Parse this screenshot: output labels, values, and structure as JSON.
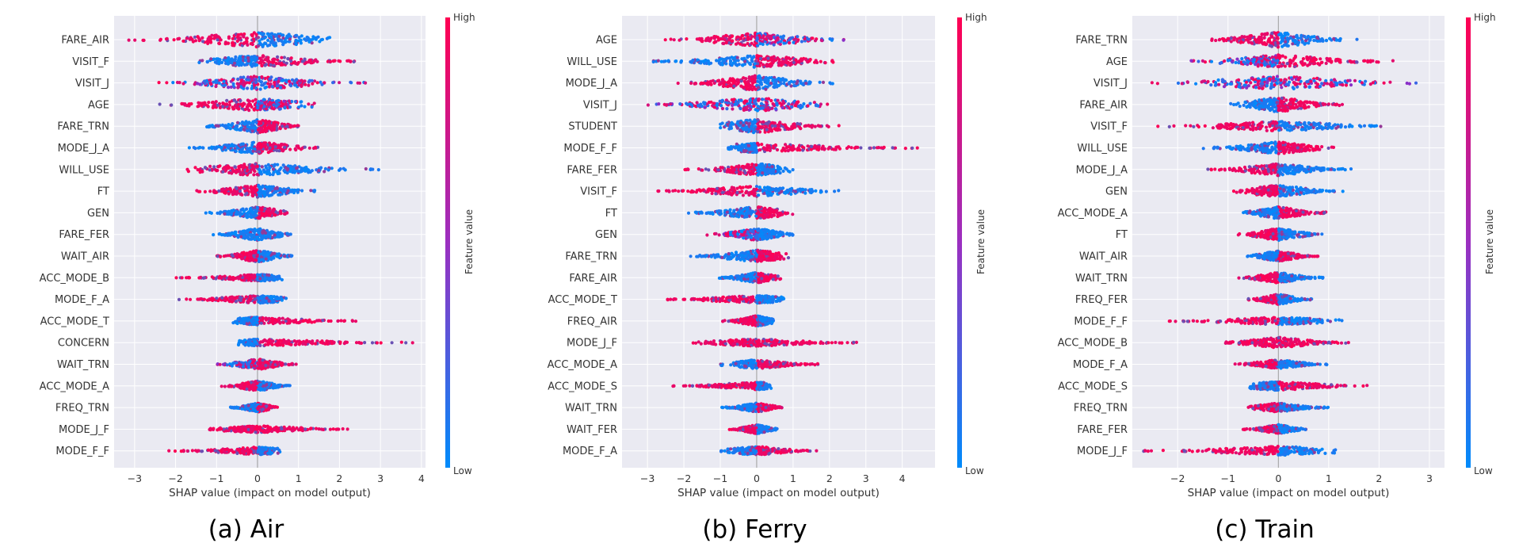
{
  "chart_data": [
    {
      "type": "scatter",
      "subtype": "shap-beeswarm",
      "caption": "(a) Air",
      "xlabel": "SHAP value (impact on model output)",
      "xlim": [
        -3.5,
        4.1
      ],
      "xticks": [
        -3,
        -2,
        -1,
        0,
        1,
        2,
        3,
        4
      ],
      "grid": true,
      "colorbar": {
        "label": "Feature value",
        "high": "High",
        "low": "Low",
        "high_color": "#ff0052",
        "low_color": "#008bfb"
      },
      "features": [
        {
          "name": "FARE_AIR",
          "min": -3.2,
          "max": 1.9,
          "left": "high",
          "right": "low",
          "width": 1.0
        },
        {
          "name": "VISIT_F",
          "min": -1.5,
          "max": 2.4,
          "left": "low",
          "right": "high",
          "width": 0.8
        },
        {
          "name": "VISIT_J",
          "min": -2.5,
          "max": 2.7,
          "left": "mixed",
          "right": "mixed",
          "width": 0.9
        },
        {
          "name": "AGE",
          "min": -2.7,
          "max": 1.4,
          "left": "high",
          "right": "mixed",
          "width": 0.85
        },
        {
          "name": "FARE_TRN",
          "min": -1.3,
          "max": 1.0,
          "left": "low",
          "right": "high",
          "width": 0.9
        },
        {
          "name": "MODE_J_A",
          "min": -1.8,
          "max": 1.5,
          "left": "low",
          "right": "high",
          "width": 0.8
        },
        {
          "name": "WILL_USE",
          "min": -1.9,
          "max": 3.1,
          "left": "high",
          "right": "low",
          "width": 0.8
        },
        {
          "name": "FT",
          "min": -1.7,
          "max": 1.5,
          "left": "high",
          "right": "low",
          "width": 0.8
        },
        {
          "name": "GEN",
          "min": -1.3,
          "max": 0.8,
          "left": "low",
          "right": "high",
          "width": 0.8
        },
        {
          "name": "FARE_FER",
          "min": -1.1,
          "max": 0.9,
          "left": "low",
          "right": "low",
          "width": 0.8
        },
        {
          "name": "WAIT_AIR",
          "min": -1.0,
          "max": 0.9,
          "left": "high",
          "right": "low",
          "width": 0.8
        },
        {
          "name": "ACC_MODE_B",
          "min": -2.0,
          "max": 0.6,
          "left": "high",
          "right": "low",
          "width": 0.45
        },
        {
          "name": "MODE_F_A",
          "min": -2.0,
          "max": 0.7,
          "left": "high",
          "right": "low",
          "width": 0.5
        },
        {
          "name": "ACC_MODE_T",
          "min": -0.6,
          "max": 2.5,
          "left": "low",
          "right": "high",
          "width": 0.5
        },
        {
          "name": "CONCERN",
          "min": -0.5,
          "max": 3.8,
          "left": "low",
          "right": "high",
          "width": 0.45
        },
        {
          "name": "WAIT_TRN",
          "min": -1.1,
          "max": 1.0,
          "left": "mixed",
          "right": "high",
          "width": 0.7
        },
        {
          "name": "ACC_MODE_A",
          "min": -0.9,
          "max": 0.8,
          "left": "high",
          "right": "low",
          "width": 0.7
        },
        {
          "name": "FREQ_TRN",
          "min": -0.7,
          "max": 0.5,
          "left": "low",
          "right": "high",
          "width": 0.6
        },
        {
          "name": "MODE_J_F",
          "min": -1.2,
          "max": 2.4,
          "left": "high",
          "right": "high",
          "width": 0.45
        },
        {
          "name": "MODE_F_F",
          "min": -2.2,
          "max": 0.6,
          "left": "high",
          "right": "low",
          "width": 0.5
        }
      ]
    },
    {
      "type": "scatter",
      "subtype": "shap-beeswarm",
      "caption": "(b) Ferry",
      "xlabel": "SHAP value (impact on model output)",
      "xlim": [
        -3.7,
        4.9
      ],
      "xticks": [
        -3,
        -2,
        -1,
        0,
        1,
        2,
        3,
        4
      ],
      "grid": true,
      "colorbar": {
        "label": "Feature value",
        "high": "High",
        "low": "Low",
        "high_color": "#ff0052",
        "low_color": "#008bfb"
      },
      "features": [
        {
          "name": "AGE",
          "min": -2.7,
          "max": 2.4,
          "left": "high",
          "right": "mixed",
          "width": 0.9
        },
        {
          "name": "WILL_USE",
          "min": -3.2,
          "max": 2.4,
          "left": "low",
          "right": "high",
          "width": 0.8
        },
        {
          "name": "MODE_J_A",
          "min": -2.2,
          "max": 2.1,
          "left": "high",
          "right": "low",
          "width": 1.0
        },
        {
          "name": "VISIT_J",
          "min": -3.1,
          "max": 2.3,
          "left": "mixed",
          "right": "mixed",
          "width": 0.9
        },
        {
          "name": "STUDENT",
          "min": -1.0,
          "max": 2.3,
          "left": "low",
          "right": "high",
          "width": 0.9
        },
        {
          "name": "MODE_F_F",
          "min": -0.8,
          "max": 4.5,
          "left": "low",
          "right": "high",
          "width": 0.6
        },
        {
          "name": "FARE_FER",
          "min": -2.0,
          "max": 1.0,
          "left": "high",
          "right": "low",
          "width": 0.8
        },
        {
          "name": "VISIT_F",
          "min": -2.8,
          "max": 2.3,
          "left": "high",
          "right": "low",
          "width": 0.7
        },
        {
          "name": "FT",
          "min": -1.9,
          "max": 1.0,
          "left": "low",
          "right": "high",
          "width": 0.8
        },
        {
          "name": "GEN",
          "min": -1.4,
          "max": 1.0,
          "left": "mixed",
          "right": "low",
          "width": 0.8
        },
        {
          "name": "FARE_TRN",
          "min": -1.9,
          "max": 0.9,
          "left": "low",
          "right": "high",
          "width": 0.8
        },
        {
          "name": "FARE_AIR",
          "min": -1.1,
          "max": 0.7,
          "left": "low",
          "right": "high",
          "width": 0.7
        },
        {
          "name": "ACC_MODE_T",
          "min": -2.8,
          "max": 0.8,
          "left": "high",
          "right": "low",
          "width": 0.5
        },
        {
          "name": "FREQ_AIR",
          "min": -1.0,
          "max": 0.6,
          "left": "high",
          "right": "low",
          "width": 0.7
        },
        {
          "name": "MODE_J_F",
          "min": -1.9,
          "max": 2.8,
          "left": "high",
          "right": "high",
          "width": 0.5
        },
        {
          "name": "ACC_MODE_A",
          "min": -1.0,
          "max": 1.7,
          "left": "low",
          "right": "high",
          "width": 0.6
        },
        {
          "name": "ACC_MODE_S",
          "min": -2.4,
          "max": 0.4,
          "left": "high",
          "right": "low",
          "width": 0.5
        },
        {
          "name": "WAIT_TRN",
          "min": -1.0,
          "max": 0.7,
          "left": "low",
          "right": "high",
          "width": 0.6
        },
        {
          "name": "WAIT_FER",
          "min": -0.8,
          "max": 0.6,
          "left": "high",
          "right": "low",
          "width": 0.6
        },
        {
          "name": "MODE_F_A",
          "min": -1.0,
          "max": 1.7,
          "left": "low",
          "right": "high",
          "width": 0.6
        }
      ]
    },
    {
      "type": "scatter",
      "subtype": "shap-beeswarm",
      "caption": "(c) Train",
      "xlabel": "SHAP value (impact on model output)",
      "xlim": [
        -2.9,
        3.3
      ],
      "xticks": [
        -2,
        -1,
        0,
        1,
        2,
        3
      ],
      "grid": true,
      "colorbar": {
        "label": "Feature value",
        "high": "High",
        "low": "Low",
        "high_color": "#ff0052",
        "low_color": "#008bfb"
      },
      "features": [
        {
          "name": "FARE_TRN",
          "min": -1.4,
          "max": 1.6,
          "left": "high",
          "right": "low",
          "width": 1.0
        },
        {
          "name": "AGE",
          "min": -1.8,
          "max": 2.3,
          "left": "mixed",
          "right": "high",
          "width": 0.85
        },
        {
          "name": "VISIT_J",
          "min": -2.6,
          "max": 3.0,
          "left": "mixed",
          "right": "mixed",
          "width": 0.9
        },
        {
          "name": "FARE_AIR",
          "min": -1.0,
          "max": 1.3,
          "left": "low",
          "right": "high",
          "width": 1.0
        },
        {
          "name": "VISIT_F",
          "min": -2.4,
          "max": 2.1,
          "left": "high",
          "right": "low",
          "width": 0.7
        },
        {
          "name": "WILL_USE",
          "min": -1.5,
          "max": 1.2,
          "left": "low",
          "right": "high",
          "width": 0.8
        },
        {
          "name": "MODE_J_A",
          "min": -1.4,
          "max": 1.5,
          "left": "high",
          "right": "low",
          "width": 0.8
        },
        {
          "name": "GEN",
          "min": -0.9,
          "max": 1.3,
          "left": "high",
          "right": "low",
          "width": 0.8
        },
        {
          "name": "ACC_MODE_A",
          "min": -0.7,
          "max": 1.0,
          "left": "low",
          "right": "high",
          "width": 0.8
        },
        {
          "name": "FT",
          "min": -0.8,
          "max": 1.0,
          "left": "high",
          "right": "low",
          "width": 0.8
        },
        {
          "name": "WAIT_AIR",
          "min": -0.7,
          "max": 0.8,
          "left": "low",
          "right": "high",
          "width": 0.7
        },
        {
          "name": "WAIT_TRN",
          "min": -0.8,
          "max": 0.9,
          "left": "high",
          "right": "low",
          "width": 0.7
        },
        {
          "name": "FREQ_FER",
          "min": -0.6,
          "max": 0.7,
          "left": "high",
          "right": "low",
          "width": 0.7
        },
        {
          "name": "MODE_F_F",
          "min": -2.4,
          "max": 1.3,
          "left": "high",
          "right": "low",
          "width": 0.5
        },
        {
          "name": "ACC_MODE_B",
          "min": -1.1,
          "max": 1.4,
          "left": "high",
          "right": "high",
          "width": 0.7
        },
        {
          "name": "MODE_F_A",
          "min": -0.9,
          "max": 1.0,
          "left": "high",
          "right": "low",
          "width": 0.6
        },
        {
          "name": "ACC_MODE_S",
          "min": -0.6,
          "max": 1.9,
          "left": "low",
          "right": "high",
          "width": 0.6
        },
        {
          "name": "FREQ_TRN",
          "min": -0.6,
          "max": 1.0,
          "left": "high",
          "right": "low",
          "width": 0.6
        },
        {
          "name": "FARE_FER",
          "min": -0.7,
          "max": 0.6,
          "left": "high",
          "right": "low",
          "width": 0.6
        },
        {
          "name": "MODE_J_F",
          "min": -2.7,
          "max": 1.2,
          "left": "high",
          "right": "low",
          "width": 0.6
        }
      ]
    }
  ]
}
